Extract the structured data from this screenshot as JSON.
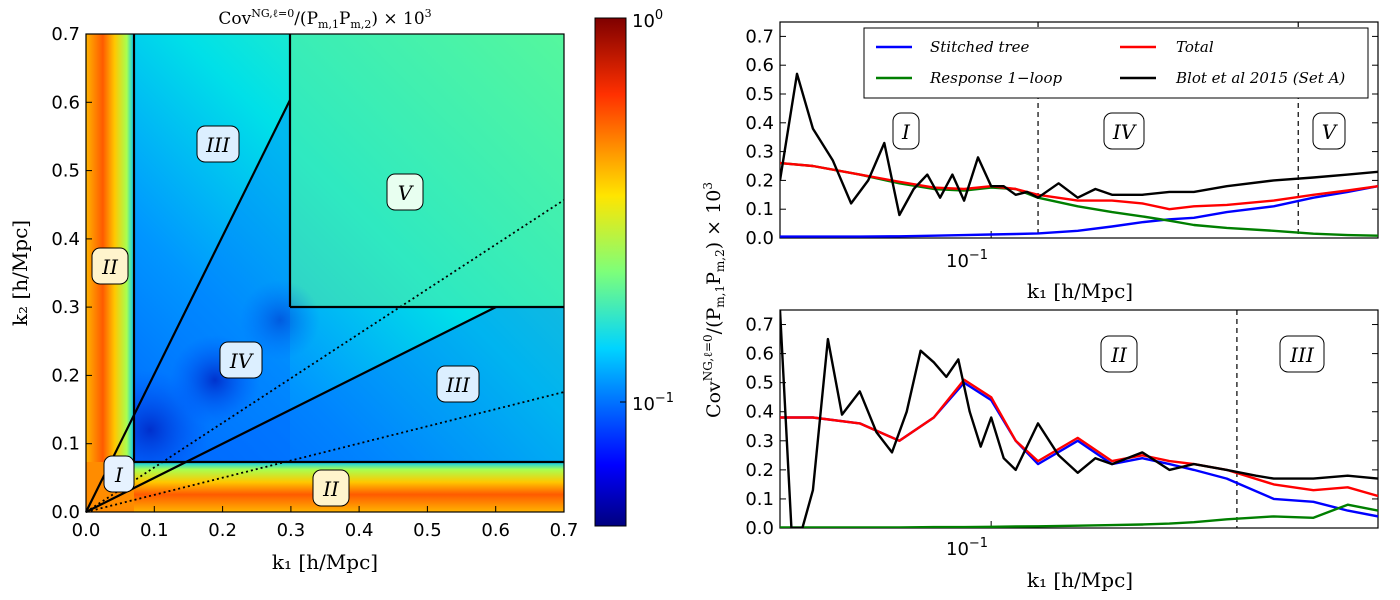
{
  "heatmap": {
    "title_main": "Cov",
    "title_sup": "NG,ℓ=0",
    "title_rest": "/(P",
    "title_sub1": "m,1",
    "title_mid": "P",
    "title_sub2": "m,2",
    "title_end": ") × 10",
    "title_exp": "3",
    "xlabel": "k₁  [h/Mpc]",
    "ylabel": "k₂  [h/Mpc]",
    "xticks": [
      "0.0",
      "0.1",
      "0.2",
      "0.3",
      "0.4",
      "0.5",
      "0.6",
      "0.7"
    ],
    "yticks": [
      "0.0",
      "0.1",
      "0.2",
      "0.3",
      "0.4",
      "0.5",
      "0.6",
      "0.7"
    ],
    "regions": {
      "I": "I",
      "II_left": "II",
      "II_bottom": "II",
      "III_top": "III",
      "III_right": "III",
      "IV": "IV",
      "V": "V"
    },
    "colorbar": {
      "top_base": "10",
      "top_exp": "0",
      "mid_base": "10",
      "mid_exp": "−1"
    }
  },
  "chart_data": [
    {
      "type": "heatmap",
      "title": "Cov^{NG,l=0}/(P_{m,1}P_{m,2}) x 10^3",
      "xlabel": "k1 [h/Mpc]",
      "ylabel": "k2 [h/Mpc]",
      "xlim": [
        0.0,
        0.7
      ],
      "ylim": [
        0.0,
        0.7
      ],
      "color_scale": "log",
      "clim": [
        0.04,
        1.0
      ],
      "region_boundaries_k": [
        0.075,
        0.3
      ],
      "dotted_ratio_lines": [
        0.25,
        0.65
      ],
      "diagonal_lines": [
        [
          0.0,
          0.0,
          0.3,
          0.6
        ],
        [
          0.0,
          0.0,
          0.6,
          0.3
        ]
      ]
    },
    {
      "type": "line",
      "xlabel": "k1 [h/Mpc]",
      "xscale": "log",
      "xlim": [
        0.044,
        0.45
      ],
      "ylim": [
        0.0,
        0.75
      ],
      "yticks": [
        "0.0",
        "0.1",
        "0.2",
        "0.3",
        "0.4",
        "0.5",
        "0.6",
        "0.7"
      ],
      "xtick_label": {
        "base": "10",
        "exp": "−1"
      },
      "region_dividers_k": [
        0.12,
        0.33
      ],
      "regions": [
        "I",
        "IV",
        "V"
      ],
      "series": [
        {
          "name": "Stitched tree",
          "color": "#0000ff",
          "x": [
            0.044,
            0.05,
            0.06,
            0.07,
            0.08,
            0.09,
            0.1,
            0.11,
            0.12,
            0.14,
            0.16,
            0.18,
            0.2,
            0.22,
            0.25,
            0.3,
            0.35,
            0.4,
            0.45
          ],
          "y": [
            0.005,
            0.005,
            0.005,
            0.006,
            0.008,
            0.01,
            0.012,
            0.014,
            0.016,
            0.025,
            0.04,
            0.055,
            0.065,
            0.07,
            0.09,
            0.11,
            0.14,
            0.16,
            0.18
          ]
        },
        {
          "name": "Response 1−loop",
          "color": "#007f00",
          "x": [
            0.044,
            0.05,
            0.06,
            0.07,
            0.08,
            0.09,
            0.1,
            0.11,
            0.12,
            0.14,
            0.16,
            0.18,
            0.2,
            0.22,
            0.25,
            0.3,
            0.35,
            0.4,
            0.45
          ],
          "y": [
            0.26,
            0.25,
            0.22,
            0.19,
            0.17,
            0.165,
            0.175,
            0.17,
            0.14,
            0.11,
            0.09,
            0.075,
            0.06,
            0.045,
            0.035,
            0.025,
            0.015,
            0.01,
            0.008
          ]
        },
        {
          "name": "Total",
          "color": "#ff0000",
          "x": [
            0.044,
            0.05,
            0.06,
            0.07,
            0.08,
            0.09,
            0.1,
            0.11,
            0.12,
            0.14,
            0.16,
            0.18,
            0.2,
            0.22,
            0.25,
            0.3,
            0.35,
            0.4,
            0.45
          ],
          "y": [
            0.26,
            0.25,
            0.22,
            0.195,
            0.175,
            0.17,
            0.18,
            0.17,
            0.15,
            0.13,
            0.13,
            0.12,
            0.1,
            0.11,
            0.115,
            0.13,
            0.15,
            0.165,
            0.18
          ]
        },
        {
          "name": "Blot et al 2015 (Set A)",
          "color": "#000000",
          "x": [
            0.044,
            0.047,
            0.05,
            0.054,
            0.058,
            0.062,
            0.066,
            0.07,
            0.074,
            0.078,
            0.082,
            0.086,
            0.09,
            0.095,
            0.1,
            0.105,
            0.11,
            0.115,
            0.12,
            0.13,
            0.14,
            0.15,
            0.16,
            0.18,
            0.2,
            0.22,
            0.25,
            0.3,
            0.35,
            0.4,
            0.45
          ],
          "y": [
            0.2,
            0.57,
            0.38,
            0.27,
            0.12,
            0.2,
            0.33,
            0.08,
            0.17,
            0.22,
            0.14,
            0.22,
            0.13,
            0.28,
            0.18,
            0.18,
            0.15,
            0.16,
            0.14,
            0.19,
            0.14,
            0.17,
            0.15,
            0.15,
            0.16,
            0.16,
            0.18,
            0.2,
            0.21,
            0.22,
            0.23
          ]
        }
      ]
    },
    {
      "type": "line",
      "xlabel": "k1 [h/Mpc]",
      "xscale": "log",
      "xlim": [
        0.044,
        0.45
      ],
      "ylim": [
        0.0,
        0.75
      ],
      "yticks": [
        "0.0",
        "0.1",
        "0.2",
        "0.3",
        "0.4",
        "0.5",
        "0.6",
        "0.7"
      ],
      "xtick_label": {
        "base": "10",
        "exp": "−1"
      },
      "region_dividers_k": [
        0.26
      ],
      "regions": [
        "II",
        "III"
      ],
      "series": [
        {
          "name": "Stitched tree",
          "color": "#0000ff",
          "x": [
            0.044,
            0.05,
            0.06,
            0.07,
            0.08,
            0.09,
            0.1,
            0.11,
            0.12,
            0.14,
            0.16,
            0.18,
            0.2,
            0.22,
            0.25,
            0.3,
            0.35,
            0.4,
            0.45
          ],
          "y": [
            0.38,
            0.38,
            0.36,
            0.3,
            0.38,
            0.5,
            0.44,
            0.3,
            0.22,
            0.3,
            0.22,
            0.24,
            0.22,
            0.2,
            0.17,
            0.1,
            0.09,
            0.06,
            0.04
          ]
        },
        {
          "name": "Response 1−loop",
          "color": "#007f00",
          "x": [
            0.044,
            0.05,
            0.06,
            0.07,
            0.08,
            0.09,
            0.1,
            0.11,
            0.12,
            0.14,
            0.16,
            0.18,
            0.2,
            0.22,
            0.25,
            0.3,
            0.35,
            0.4,
            0.45
          ],
          "y": [
            0.002,
            0.002,
            0.002,
            0.002,
            0.003,
            0.003,
            0.004,
            0.005,
            0.006,
            0.008,
            0.01,
            0.012,
            0.015,
            0.02,
            0.03,
            0.04,
            0.035,
            0.08,
            0.06
          ]
        },
        {
          "name": "Total",
          "color": "#ff0000",
          "x": [
            0.044,
            0.05,
            0.06,
            0.07,
            0.08,
            0.09,
            0.1,
            0.11,
            0.12,
            0.14,
            0.16,
            0.18,
            0.2,
            0.22,
            0.25,
            0.3,
            0.35,
            0.4,
            0.45
          ],
          "y": [
            0.38,
            0.38,
            0.36,
            0.3,
            0.38,
            0.51,
            0.45,
            0.3,
            0.23,
            0.31,
            0.23,
            0.25,
            0.23,
            0.22,
            0.2,
            0.15,
            0.13,
            0.14,
            0.11
          ]
        },
        {
          "name": "Blot et al 2015 (Set A)",
          "color": "#000000",
          "x": [
            0.044,
            0.046,
            0.048,
            0.05,
            0.053,
            0.056,
            0.06,
            0.064,
            0.068,
            0.072,
            0.076,
            0.08,
            0.084,
            0.088,
            0.092,
            0.096,
            0.1,
            0.105,
            0.11,
            0.12,
            0.13,
            0.14,
            0.15,
            0.16,
            0.18,
            0.2,
            0.22,
            0.25,
            0.28,
            0.3,
            0.35,
            0.4,
            0.45
          ],
          "y": [
            0.75,
            0.0,
            0.0,
            0.13,
            0.65,
            0.39,
            0.47,
            0.33,
            0.26,
            0.4,
            0.61,
            0.57,
            0.52,
            0.58,
            0.4,
            0.28,
            0.38,
            0.24,
            0.2,
            0.36,
            0.25,
            0.19,
            0.24,
            0.22,
            0.26,
            0.2,
            0.22,
            0.2,
            0.18,
            0.17,
            0.17,
            0.18,
            0.17
          ]
        }
      ]
    }
  ],
  "legend": {
    "items": [
      {
        "label": "Stitched tree",
        "color": "#0000ff"
      },
      {
        "label": "Total",
        "color": "#ff0000"
      },
      {
        "label": "Response 1−loop",
        "color": "#007f00"
      },
      {
        "label": "Blot et al 2015 (Set A)",
        "color": "#000000"
      }
    ]
  },
  "shared_ylabel": {
    "main": "Cov",
    "sup": "NG,ℓ=0",
    "rest": "/(P",
    "sub1": "m,1",
    "mid": "P",
    "sub2": "m,2",
    "end": ") × 10",
    "exp": "3"
  },
  "right_xlabel": "k₁  [h/Mpc]"
}
